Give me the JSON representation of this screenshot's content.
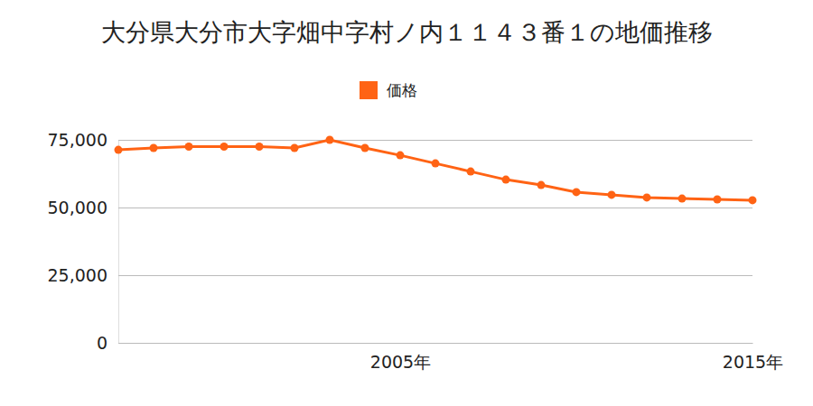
{
  "chart_data": {
    "type": "line",
    "title": "大分県大分市大字畑中字村ノ内１１４３番１の地価推移",
    "x": [
      1997,
      1998,
      1999,
      2000,
      2001,
      2002,
      2003,
      2004,
      2005,
      2006,
      2007,
      2008,
      2009,
      2010,
      2011,
      2012,
      2013,
      2014,
      2015
    ],
    "series": [
      {
        "name": "価格",
        "color": "#ff6314",
        "marker": "circle",
        "values": [
          71300,
          72000,
          72500,
          72500,
          72500,
          72000,
          75000,
          72000,
          69300,
          66300,
          63300,
          60300,
          58300,
          55700,
          54700,
          53700,
          53300,
          53000,
          52700
        ]
      }
    ],
    "xlim": [
      1997,
      2015
    ],
    "xticks": [
      {
        "value": 2005,
        "label": "2005年"
      },
      {
        "value": 2015,
        "label": "2015年"
      }
    ],
    "ylim": [
      0,
      75000
    ],
    "yticks": [
      0,
      {
        "value": 25000,
        "label": "25,000"
      },
      {
        "value": 50000,
        "label": "50,000"
      },
      {
        "value": 75000,
        "label": "75,000"
      }
    ],
    "grid": true,
    "legend": "top"
  }
}
